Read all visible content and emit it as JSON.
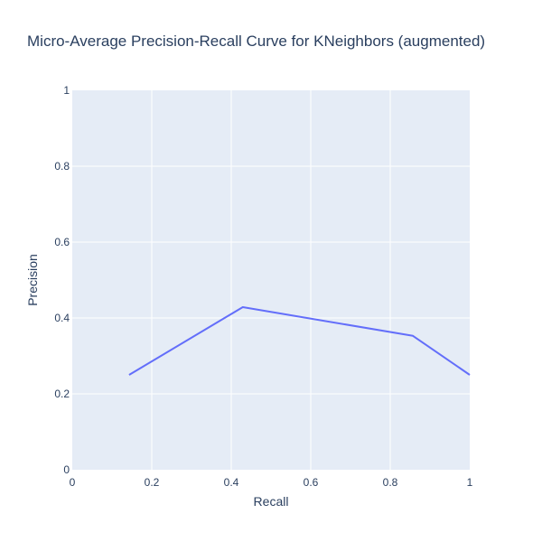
{
  "chart_data": {
    "type": "line",
    "title": "Micro-Average Precision-Recall Curve for KNeighbors (augmented)",
    "xlabel": "Recall",
    "ylabel": "Precision",
    "xlim": [
      0,
      1
    ],
    "ylim": [
      0,
      1
    ],
    "xticks": [
      "0",
      "0.2",
      "0.4",
      "0.6",
      "0.8",
      "1"
    ],
    "yticks": [
      "0",
      "0.2",
      "0.4",
      "0.6",
      "0.8",
      "1"
    ],
    "grid": true,
    "series": [
      {
        "color": "#636efa",
        "x": [
          0.143,
          0.429,
          0.857,
          1.0
        ],
        "y": [
          0.25,
          0.4286,
          0.3529,
          0.25
        ]
      }
    ]
  },
  "colors": {
    "plot_background": "#e5ecf6",
    "grid": "#ffffff",
    "text": "#2a3f5f"
  }
}
